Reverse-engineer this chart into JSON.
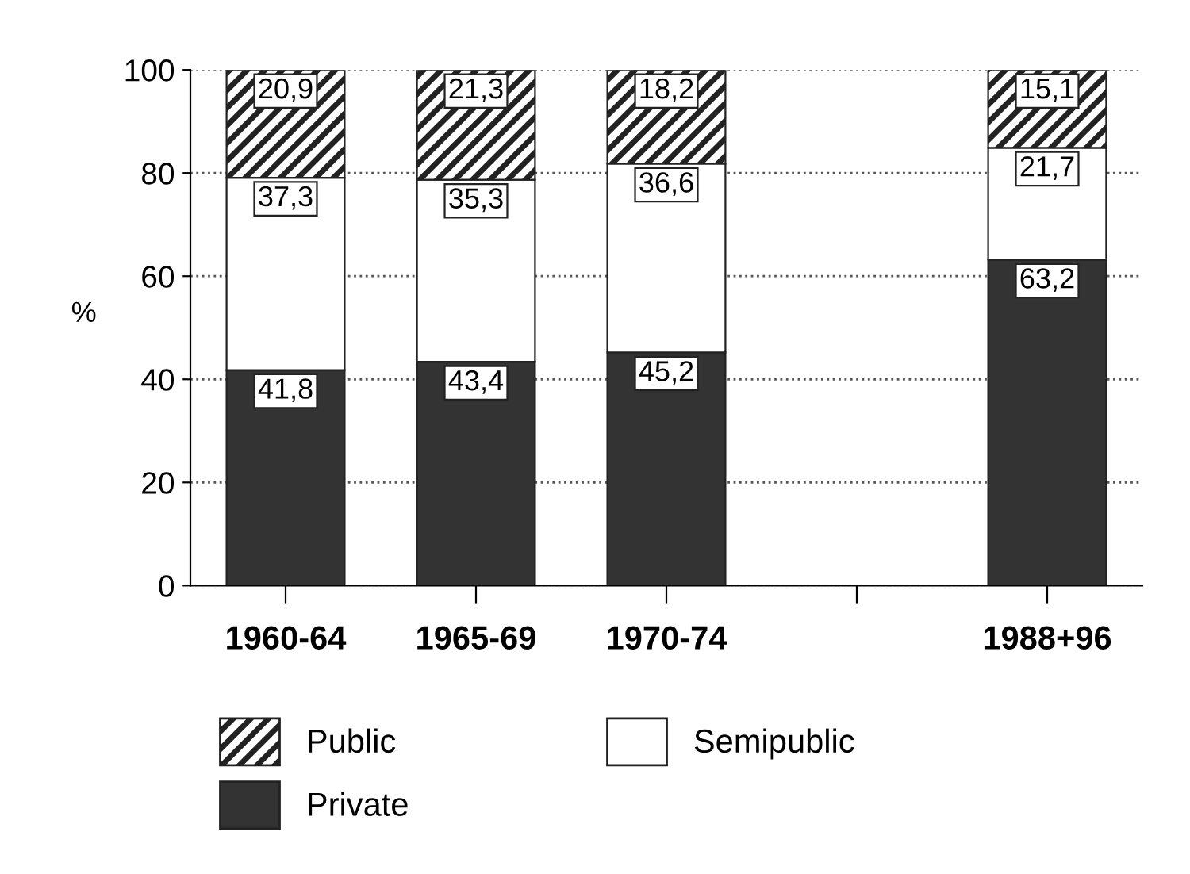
{
  "chart_data": {
    "type": "bar",
    "stacked": true,
    "ylabel": "%",
    "categories": [
      "1960-64",
      "1965-69",
      "1970-74",
      null,
      "1988+96"
    ],
    "series": [
      {
        "name": "Private",
        "color": "#333333",
        "values": [
          41.8,
          43.4,
          45.2,
          null,
          63.2
        ],
        "value_labels": [
          "41,8",
          "43,4",
          "45,2",
          null,
          "63,2"
        ]
      },
      {
        "name": "Semipublic",
        "color": "#ffffff",
        "values": [
          37.3,
          35.3,
          36.6,
          null,
          21.7
        ],
        "value_labels": [
          "37,3",
          "35,3",
          "36,6",
          null,
          "21,7"
        ]
      },
      {
        "name": "Public",
        "color": "#222222",
        "values": [
          20.9,
          21.3,
          18.2,
          null,
          15.1
        ],
        "value_labels": [
          "20,9",
          "21,3",
          "18,2",
          null,
          "15,1"
        ]
      }
    ],
    "ylim": [
      0,
      100
    ],
    "yticks": [
      0,
      20,
      40,
      60,
      80,
      100
    ],
    "grid": "y",
    "legend": "bottom"
  }
}
